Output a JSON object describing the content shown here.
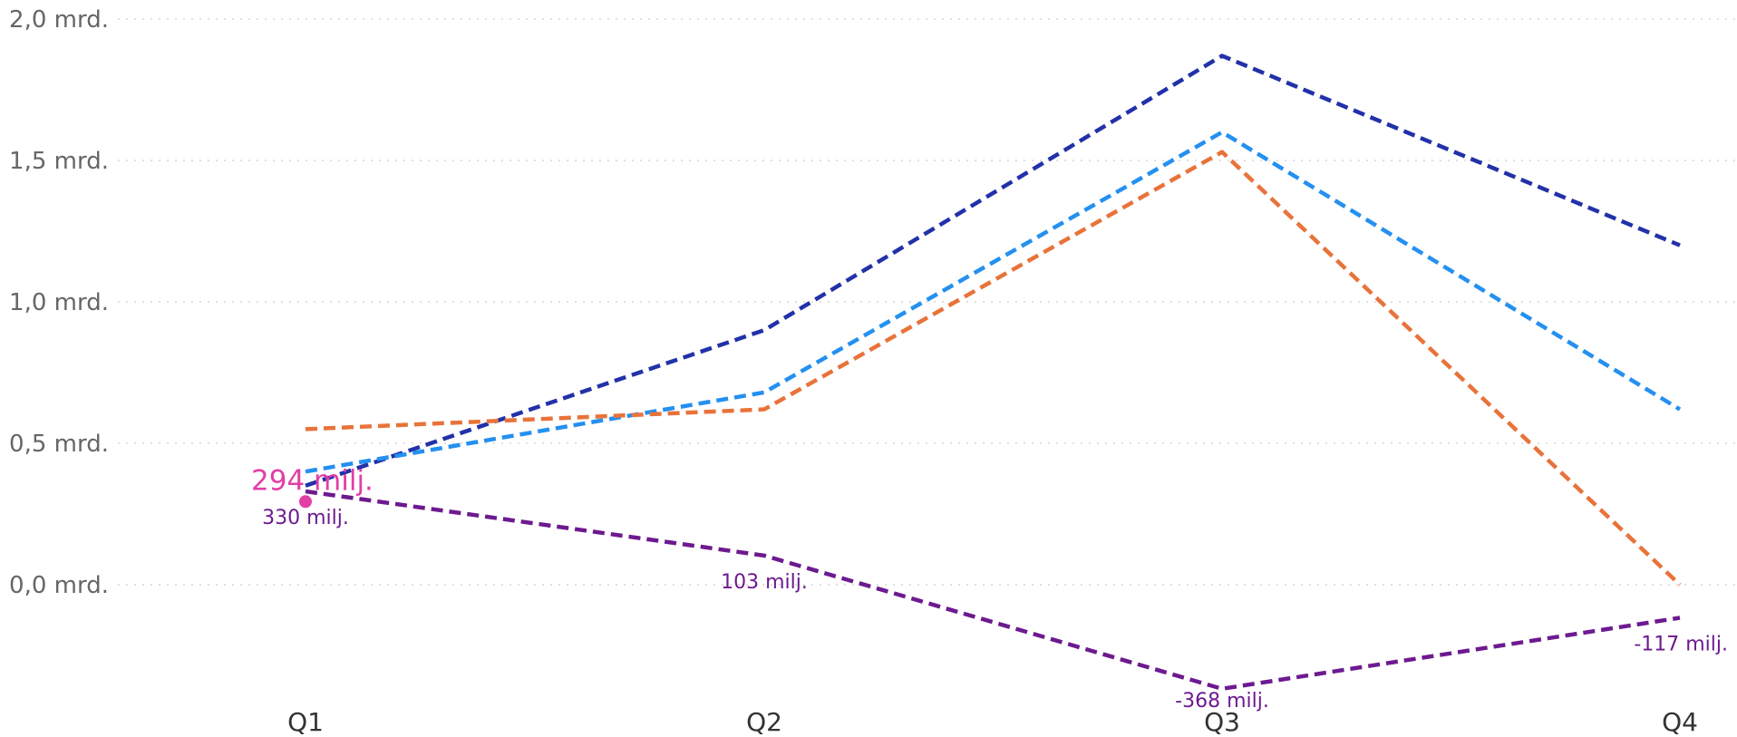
{
  "chart_data": {
    "type": "line",
    "title": "",
    "xlabel": "",
    "ylabel": "",
    "categories": [
      "Q1",
      "Q2",
      "Q3",
      "Q4"
    ],
    "ylim": [
      -0.38,
      2.0
    ],
    "y_ticks": [
      {
        "value": 2.0,
        "label": "2,0 mrd."
      },
      {
        "value": 1.5,
        "label": "1,5 mrd."
      },
      {
        "value": 1.0,
        "label": "1,0 mrd."
      },
      {
        "value": 0.5,
        "label": "0,5 mrd."
      },
      {
        "value": 0.0,
        "label": "0,0 mrd."
      }
    ],
    "grid": true,
    "line_style": "dashed",
    "series": [
      {
        "color": "#2231a9",
        "values": [
          0.35,
          0.9,
          1.87,
          1.2
        ]
      },
      {
        "color": "#2490f0",
        "values": [
          0.4,
          0.68,
          1.6,
          0.62
        ]
      },
      {
        "color": "#e8733a",
        "values": [
          0.55,
          0.62,
          1.53,
          0.0
        ]
      },
      {
        "color": "#6d1a90",
        "values": [
          0.33,
          0.103,
          -0.368,
          -0.117
        ],
        "data_labels": [
          "330 milj.",
          "103 milj.",
          "-368 milj.",
          "-117 milj."
        ]
      }
    ],
    "highlight": {
      "category": "Q1",
      "value": 0.294,
      "label": "294 milj.",
      "color": "#e23fa5"
    }
  }
}
